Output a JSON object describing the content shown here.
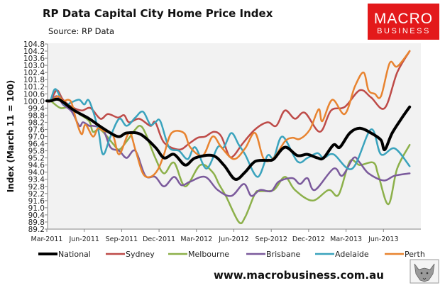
{
  "chart_data": {
    "type": "line",
    "title": "RP Data Capital City Home Price Index",
    "subtitle": "Source: RP Data",
    "xlabel": "",
    "ylabel": "Index (March 11 = 100)",
    "x_unit": "months since Mar-2011",
    "xlim": [
      0,
      30
    ],
    "ylim": [
      89.2,
      104.8
    ],
    "yticks": [
      "104.8",
      "104.2",
      "103.6",
      "103.0",
      "102.4",
      "101.8",
      "101.2",
      "100.6",
      "100.0",
      "99.4",
      "98.8",
      "98.2",
      "97.6",
      "97.0",
      "96.4",
      "95.8",
      "95.2",
      "94.6",
      "94.0",
      "93.4",
      "92.8",
      "92.2",
      "91.6",
      "91.0",
      "90.4",
      "89.8",
      "89.2"
    ],
    "xticks": [
      {
        "x": 0,
        "label": "Mar-2011"
      },
      {
        "x": 3,
        "label": "Jun-2011"
      },
      {
        "x": 6,
        "label": "Sep-2011"
      },
      {
        "x": 9,
        "label": "Dec-2011"
      },
      {
        "x": 12,
        "label": "Mar-2012"
      },
      {
        "x": 15,
        "label": "Jun-2012"
      },
      {
        "x": 18,
        "label": "Sep-2012"
      },
      {
        "x": 21,
        "label": "Dec-2012"
      },
      {
        "x": 24,
        "label": "Mar-2013"
      },
      {
        "x": 27,
        "label": "Jun-2013"
      }
    ],
    "grid": false,
    "legend_position": "bottom",
    "series": [
      {
        "name": "National",
        "color": "#000000",
        "width": 4,
        "points": [
          [
            0,
            100.0
          ],
          [
            0.3,
            100.0
          ],
          [
            1.0,
            100.1
          ],
          [
            2.2,
            99.2
          ],
          [
            3.4,
            98.5
          ],
          [
            4.5,
            97.7
          ],
          [
            5.7,
            97.0
          ],
          [
            6.4,
            97.3
          ],
          [
            7.5,
            97.2
          ],
          [
            8.7,
            96.1
          ],
          [
            9.4,
            95.2
          ],
          [
            10.2,
            95.5
          ],
          [
            11.1,
            94.6
          ],
          [
            11.9,
            95.2
          ],
          [
            13.3,
            95.4
          ],
          [
            14.2,
            94.6
          ],
          [
            15.1,
            93.4
          ],
          [
            15.9,
            94.0
          ],
          [
            16.7,
            94.9
          ],
          [
            17.7,
            95.0
          ],
          [
            18.2,
            95.1
          ],
          [
            19.1,
            96.1
          ],
          [
            20.1,
            95.4
          ],
          [
            20.9,
            95.5
          ],
          [
            21.7,
            95.2
          ],
          [
            22.2,
            95.2
          ],
          [
            23.0,
            96.3
          ],
          [
            23.5,
            96.1
          ],
          [
            24.3,
            97.3
          ],
          [
            25.1,
            97.7
          ],
          [
            26.0,
            97.3
          ],
          [
            26.8,
            96.7
          ],
          [
            27.1,
            95.9
          ],
          [
            27.7,
            97.3
          ],
          [
            28.5,
            98.6
          ],
          [
            29.1,
            99.5
          ]
        ]
      },
      {
        "name": "Sydney",
        "color": "#be4b48",
        "width": 2.5,
        "points": [
          [
            0,
            100.0
          ],
          [
            0.3,
            100.0
          ],
          [
            0.8,
            100.9
          ],
          [
            1.3,
            100.1
          ],
          [
            2.0,
            99.5
          ],
          [
            2.8,
            99.2
          ],
          [
            3.5,
            99.4
          ],
          [
            4.3,
            98.5
          ],
          [
            4.9,
            98.9
          ],
          [
            5.7,
            98.6
          ],
          [
            6.2,
            98.8
          ],
          [
            6.6,
            98.2
          ],
          [
            7.4,
            98.5
          ],
          [
            8.3,
            97.9
          ],
          [
            8.7,
            98.2
          ],
          [
            9.4,
            96.5
          ],
          [
            10.6,
            95.9
          ],
          [
            11.4,
            96.4
          ],
          [
            12.1,
            96.9
          ],
          [
            12.7,
            97.0
          ],
          [
            13.4,
            97.4
          ],
          [
            14.0,
            97.0
          ],
          [
            14.6,
            95.4
          ],
          [
            15.0,
            95.4
          ],
          [
            15.7,
            96.4
          ],
          [
            16.7,
            97.6
          ],
          [
            17.7,
            98.2
          ],
          [
            18.4,
            97.9
          ],
          [
            19.1,
            99.2
          ],
          [
            19.9,
            98.5
          ],
          [
            20.7,
            99.0
          ],
          [
            21.9,
            97.4
          ],
          [
            22.8,
            99.2
          ],
          [
            23.9,
            99.5
          ],
          [
            25.1,
            100.9
          ],
          [
            26.0,
            100.3
          ],
          [
            27.1,
            99.4
          ],
          [
            28.1,
            102.4
          ],
          [
            29.1,
            104.2
          ]
        ]
      },
      {
        "name": "Melbourne",
        "color": "#8cb04a",
        "width": 2.5,
        "points": [
          [
            0,
            100.0
          ],
          [
            0.3,
            100.0
          ],
          [
            1.1,
            99.4
          ],
          [
            1.9,
            99.5
          ],
          [
            2.6,
            98.9
          ],
          [
            3.4,
            98.3
          ],
          [
            3.7,
            97.4
          ],
          [
            4.3,
            97.6
          ],
          [
            5.3,
            96.4
          ],
          [
            5.8,
            95.9
          ],
          [
            6.4,
            96.6
          ],
          [
            7.1,
            97.6
          ],
          [
            7.5,
            97.9
          ],
          [
            7.9,
            97.3
          ],
          [
            8.7,
            95.2
          ],
          [
            9.4,
            93.9
          ],
          [
            10.2,
            94.8
          ],
          [
            11.1,
            92.8
          ],
          [
            12.3,
            94.6
          ],
          [
            13.3,
            94.0
          ],
          [
            13.8,
            93.0
          ],
          [
            14.4,
            91.9
          ],
          [
            15.4,
            89.8
          ],
          [
            15.9,
            90.2
          ],
          [
            16.7,
            92.2
          ],
          [
            17.1,
            92.4
          ],
          [
            18.2,
            92.5
          ],
          [
            19.1,
            93.6
          ],
          [
            19.9,
            92.5
          ],
          [
            21.3,
            91.6
          ],
          [
            22.6,
            92.5
          ],
          [
            23.4,
            92.1
          ],
          [
            24.3,
            94.9
          ],
          [
            25.1,
            94.6
          ],
          [
            26.2,
            94.8
          ],
          [
            26.6,
            93.7
          ],
          [
            27.4,
            91.3
          ],
          [
            28.1,
            94.3
          ],
          [
            29.1,
            96.3
          ]
        ]
      },
      {
        "name": "Brisbane",
        "color": "#7b5a9c",
        "width": 2.5,
        "points": [
          [
            0,
            100.0
          ],
          [
            0.3,
            100.0
          ],
          [
            0.8,
            100.4
          ],
          [
            1.3,
            99.7
          ],
          [
            2.0,
            99.1
          ],
          [
            2.6,
            97.9
          ],
          [
            2.9,
            98.2
          ],
          [
            3.4,
            97.9
          ],
          [
            3.7,
            97.9
          ],
          [
            4.5,
            97.6
          ],
          [
            5.1,
            96.1
          ],
          [
            5.8,
            95.8
          ],
          [
            6.4,
            95.2
          ],
          [
            7.1,
            95.8
          ],
          [
            7.9,
            93.7
          ],
          [
            8.7,
            93.6
          ],
          [
            9.4,
            92.8
          ],
          [
            10.2,
            93.6
          ],
          [
            10.8,
            92.9
          ],
          [
            11.5,
            93.2
          ],
          [
            12.7,
            93.6
          ],
          [
            13.7,
            92.5
          ],
          [
            14.8,
            92.0
          ],
          [
            15.8,
            93.0
          ],
          [
            16.4,
            92.0
          ],
          [
            17.1,
            92.5
          ],
          [
            18.0,
            92.4
          ],
          [
            18.6,
            93.2
          ],
          [
            19.7,
            93.5
          ],
          [
            20.3,
            93.0
          ],
          [
            20.9,
            93.5
          ],
          [
            21.5,
            92.5
          ],
          [
            23.0,
            94.3
          ],
          [
            23.7,
            93.7
          ],
          [
            24.6,
            95.2
          ],
          [
            25.1,
            94.8
          ],
          [
            25.8,
            93.9
          ],
          [
            27.0,
            93.3
          ],
          [
            27.9,
            93.7
          ],
          [
            29.1,
            93.9
          ]
        ]
      },
      {
        "name": "Adelaide",
        "color": "#3aa3bd",
        "width": 2.5,
        "points": [
          [
            0,
            100.0
          ],
          [
            0.3,
            100.1
          ],
          [
            0.7,
            101.0
          ],
          [
            1.4,
            99.7
          ],
          [
            2.0,
            99.9
          ],
          [
            2.6,
            100.1
          ],
          [
            3.0,
            99.7
          ],
          [
            3.4,
            100.0
          ],
          [
            4.1,
            97.7
          ],
          [
            4.5,
            95.5
          ],
          [
            5.1,
            97.0
          ],
          [
            5.8,
            98.5
          ],
          [
            6.4,
            97.9
          ],
          [
            7.1,
            98.6
          ],
          [
            7.7,
            99.1
          ],
          [
            8.3,
            98.0
          ],
          [
            8.7,
            98.2
          ],
          [
            9.1,
            98.3
          ],
          [
            9.8,
            96.1
          ],
          [
            10.6,
            95.8
          ],
          [
            11.3,
            95.1
          ],
          [
            11.9,
            96.1
          ],
          [
            12.8,
            94.3
          ],
          [
            13.7,
            96.1
          ],
          [
            14.2,
            96.1
          ],
          [
            14.8,
            97.3
          ],
          [
            15.4,
            96.3
          ],
          [
            15.9,
            95.5
          ],
          [
            16.9,
            93.6
          ],
          [
            17.7,
            95.4
          ],
          [
            18.2,
            95.2
          ],
          [
            18.9,
            97.0
          ],
          [
            20.1,
            94.9
          ],
          [
            20.9,
            95.2
          ],
          [
            21.7,
            95.6
          ],
          [
            22.2,
            95.2
          ],
          [
            23.0,
            95.5
          ],
          [
            24.5,
            94.3
          ],
          [
            26.0,
            97.6
          ],
          [
            26.8,
            95.5
          ],
          [
            27.9,
            96.0
          ],
          [
            29.1,
            94.5
          ]
        ]
      },
      {
        "name": "Perth",
        "color": "#e8832f",
        "width": 2.5,
        "points": [
          [
            0,
            100.0
          ],
          [
            0.3,
            100.0
          ],
          [
            0.9,
            100.4
          ],
          [
            1.3,
            100.0
          ],
          [
            1.7,
            100.1
          ],
          [
            2.0,
            99.8
          ],
          [
            2.4,
            98.2
          ],
          [
            2.8,
            97.2
          ],
          [
            3.1,
            98.0
          ],
          [
            3.7,
            97.0
          ],
          [
            4.1,
            97.7
          ],
          [
            4.5,
            97.5
          ],
          [
            5.3,
            97.1
          ],
          [
            5.8,
            95.5
          ],
          [
            6.6,
            97.3
          ],
          [
            7.1,
            95.9
          ],
          [
            7.7,
            93.9
          ],
          [
            8.3,
            93.6
          ],
          [
            8.9,
            94.2
          ],
          [
            9.4,
            95.5
          ],
          [
            10.0,
            97.3
          ],
          [
            11.0,
            97.3
          ],
          [
            11.5,
            96.1
          ],
          [
            12.5,
            95.4
          ],
          [
            13.3,
            97.0
          ],
          [
            14.0,
            96.1
          ],
          [
            15.0,
            95.1
          ],
          [
            15.9,
            96.0
          ],
          [
            16.7,
            97.3
          ],
          [
            17.4,
            95.1
          ],
          [
            18.2,
            95.2
          ],
          [
            19.1,
            96.6
          ],
          [
            19.7,
            96.9
          ],
          [
            20.3,
            96.8
          ],
          [
            21.1,
            97.6
          ],
          [
            21.8,
            99.3
          ],
          [
            22.1,
            98.3
          ],
          [
            22.9,
            100.1
          ],
          [
            23.9,
            98.9
          ],
          [
            24.7,
            101.2
          ],
          [
            25.4,
            102.4
          ],
          [
            25.8,
            100.9
          ],
          [
            26.3,
            100.6
          ],
          [
            26.8,
            100.4
          ],
          [
            27.5,
            103.2
          ],
          [
            28.1,
            102.9
          ],
          [
            29.1,
            104.2
          ]
        ]
      }
    ]
  },
  "logo": {
    "line1": "MACRO",
    "line2": "BUSINESS",
    "color": "#e3191b"
  },
  "footer": {
    "url": "www.macrobusiness.com.au"
  }
}
